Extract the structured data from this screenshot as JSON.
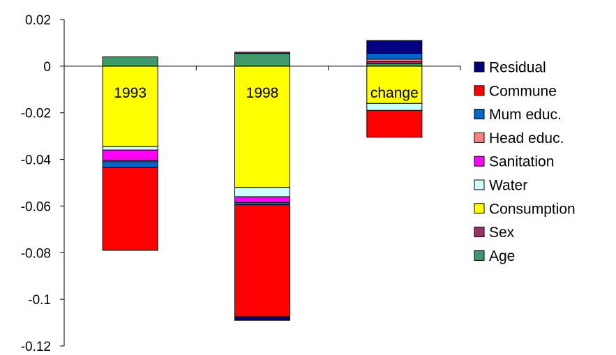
{
  "chart_data": {
    "type": "bar",
    "stacked": true,
    "categories": [
      "1993",
      "1998",
      "change"
    ],
    "ylim": [
      -0.12,
      0.02
    ],
    "yticks": [
      0.02,
      0,
      -0.02,
      -0.04,
      -0.06,
      -0.08,
      -0.1,
      -0.12
    ],
    "ytick_labels": [
      "0.02",
      "0",
      "-0.02",
      "-0.04",
      "-0.06",
      "-0.08",
      "-0.1",
      "-0.12"
    ],
    "grid": false,
    "legend_position": "right",
    "series": [
      {
        "name": "Age",
        "color": "#3C9A6A",
        "values": [
          0.004,
          0.0055,
          0.001
        ]
      },
      {
        "name": "Sex",
        "color": "#993366",
        "values": [
          0.0,
          0.0005,
          0.001
        ]
      },
      {
        "name": "Consumption",
        "color": "#FFFF00",
        "values": [
          -0.0345,
          -0.052,
          -0.016
        ]
      },
      {
        "name": "Water",
        "color": "#CCFFFF",
        "values": [
          -0.0015,
          -0.004,
          -0.003
        ]
      },
      {
        "name": "Sanitation",
        "color": "#FF00FF",
        "values": [
          -0.0045,
          -0.0025,
          0.0
        ]
      },
      {
        "name": "Head educ.",
        "color": "#FF8080",
        "values": [
          -0.0005,
          0.0,
          0.001
        ]
      },
      {
        "name": "Mum educ.",
        "color": "#0066CC",
        "values": [
          -0.0025,
          -0.001,
          0.0025
        ]
      },
      {
        "name": "Commune",
        "color": "#FF0000",
        "values": [
          -0.0355,
          -0.048,
          -0.0115
        ]
      },
      {
        "name": "Residual",
        "color": "#000080",
        "values": [
          0.0,
          -0.0015,
          0.0055
        ]
      }
    ],
    "legend_order": [
      "Residual",
      "Commune",
      "Mum educ.",
      "Head educ.",
      "Sanitation",
      "Water",
      "Consumption",
      "Sex",
      "Age"
    ]
  }
}
